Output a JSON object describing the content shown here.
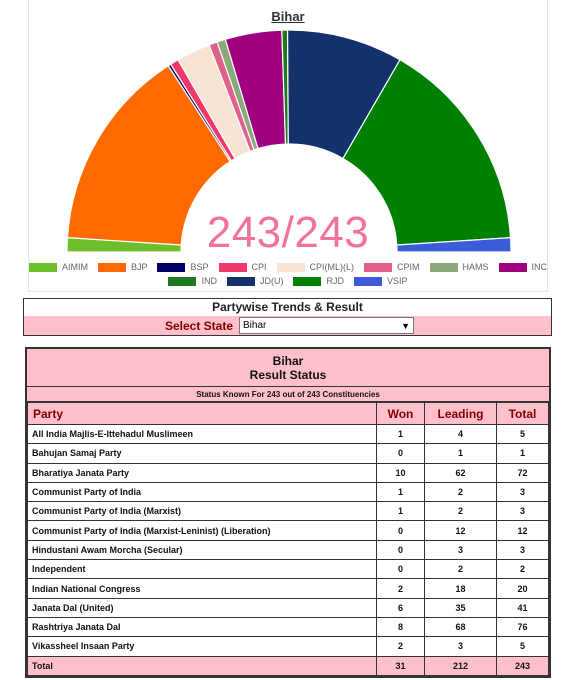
{
  "chart": {
    "title": "Bihar",
    "count_text": "243/243"
  },
  "chart_data": {
    "type": "pie",
    "subtype": "semi-donut",
    "title": "Bihar",
    "total": 243,
    "slices": [
      {
        "label": "AIMIM",
        "value": 5,
        "color": "#6cbf2a"
      },
      {
        "label": "BJP",
        "value": 72,
        "color": "#ff6a00"
      },
      {
        "label": "BSP",
        "value": 1,
        "color": "#000066"
      },
      {
        "label": "CPI",
        "value": 3,
        "color": "#f0386b"
      },
      {
        "label": "CPI(ML)(L)",
        "value": 12,
        "color": "#f7e4d4"
      },
      {
        "label": "CPIM",
        "value": 3,
        "color": "#e0608a"
      },
      {
        "label": "HAMS",
        "value": 3,
        "color": "#8aa878"
      },
      {
        "label": "INC",
        "value": 20,
        "color": "#a0007e"
      },
      {
        "label": "IND",
        "value": 2,
        "color": "#1f7a1f"
      },
      {
        "label": "JD(U)",
        "value": 41,
        "color": "#13316b"
      },
      {
        "label": "RJD",
        "value": 76,
        "color": "#008000"
      },
      {
        "label": "VSIP",
        "value": 5,
        "color": "#3d5bd9"
      }
    ],
    "legend_rows": [
      [
        "AIMIM",
        "BJP",
        "BSP",
        "CPI",
        "CPI(ML)(L)",
        "CPIM",
        "HAMS",
        "INC"
      ],
      [
        "IND",
        "JD(U)",
        "RJD",
        "VSIP"
      ]
    ]
  },
  "trends": {
    "title": "Partywise Trends & Result",
    "select_label": "Select State",
    "select_value": "Bihar"
  },
  "results": {
    "state": "Bihar",
    "subtitle": "Result Status",
    "status_line": "Status Known For 243 out of 243 Constituencies",
    "headers": {
      "party": "Party",
      "won": "Won",
      "leading": "Leading",
      "total": "Total"
    },
    "rows": [
      {
        "party": "All India Majlis-E-Ittehadul Muslimeen",
        "won": "1",
        "leading": "4",
        "total": "5"
      },
      {
        "party": "Bahujan Samaj Party",
        "won": "0",
        "leading": "1",
        "total": "1"
      },
      {
        "party": "Bharatiya Janata Party",
        "won": "10",
        "leading": "62",
        "total": "72"
      },
      {
        "party": "Communist Party of India",
        "won": "1",
        "leading": "2",
        "total": "3"
      },
      {
        "party": "Communist Party of India (Marxist)",
        "won": "1",
        "leading": "2",
        "total": "3"
      },
      {
        "party": "Communist Party of India (Marxist-Leninist) (Liberation)",
        "won": "0",
        "leading": "12",
        "total": "12"
      },
      {
        "party": "Hindustani Awam Morcha (Secular)",
        "won": "0",
        "leading": "3",
        "total": "3"
      },
      {
        "party": "Independent",
        "won": "0",
        "leading": "2",
        "total": "2"
      },
      {
        "party": "Indian National Congress",
        "won": "2",
        "leading": "18",
        "total": "20"
      },
      {
        "party": "Janata Dal (United)",
        "won": "6",
        "leading": "35",
        "total": "41"
      },
      {
        "party": "Rashtriya Janata Dal",
        "won": "8",
        "leading": "68",
        "total": "76"
      },
      {
        "party": "Vikassheel Insaan Party",
        "won": "2",
        "leading": "3",
        "total": "5"
      }
    ],
    "total_row": {
      "party": "Total",
      "won": "31",
      "leading": "212",
      "total": "243"
    }
  }
}
